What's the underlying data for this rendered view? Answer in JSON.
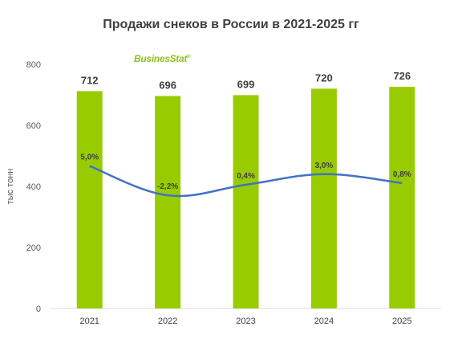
{
  "chart_data": {
    "type": "bar",
    "title": "Продажи снеков в России в 2021-2025 гг",
    "ylabel": "тыс тонн",
    "xlabel": "",
    "categories": [
      "2021",
      "2022",
      "2023",
      "2024",
      "2025"
    ],
    "ylim": [
      0,
      800
    ],
    "yticks": [
      0,
      200,
      400,
      600,
      800
    ],
    "series": [
      {
        "type": "bar",
        "values": [
          712,
          696,
          699,
          720,
          726
        ],
        "labels": [
          "712",
          "696",
          "699",
          "720",
          "726"
        ],
        "color": "#99cc00"
      },
      {
        "type": "line",
        "values": [
          5.0,
          -2.2,
          0.4,
          3.0,
          0.8
        ],
        "labels": [
          "5,0%",
          "-2,2%",
          "0,4%",
          "3,0%",
          "0,8%"
        ],
        "color": "#4472c4"
      }
    ],
    "grid": false,
    "legend": "none"
  },
  "logo": {
    "text": "BusinesStat",
    "mark": "®"
  }
}
